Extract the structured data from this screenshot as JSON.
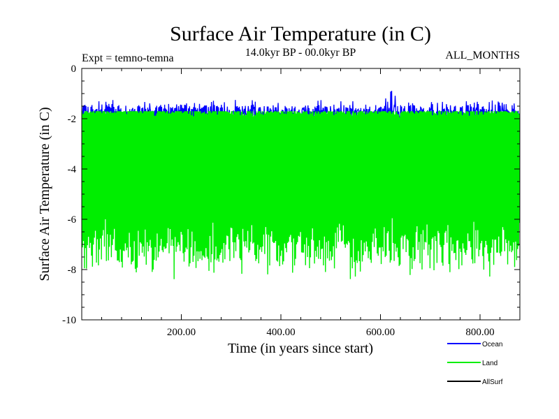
{
  "chart_data": {
    "type": "line",
    "title": "Surface Air Temperature (in C)",
    "subtitle": "14.0kyr BP - 00.0kyr BP",
    "left_annotation": "Expt = temno-temna",
    "right_annotation": "ALL_MONTHS",
    "xlabel": "Time (in years since start)",
    "ylabel": "Surface Air Temperature (in C)",
    "xlim": [
      0,
      880
    ],
    "ylim": [
      -10,
      0
    ],
    "x_ticks": [
      200,
      400,
      600,
      800
    ],
    "x_tick_labels": [
      "200.00",
      "400.00",
      "600.00",
      "800.00"
    ],
    "y_ticks": [
      0,
      -2,
      -4,
      -6,
      -8,
      -10
    ],
    "y_tick_labels": [
      "0",
      "-2",
      "-4",
      "-6",
      "-8",
      "-10"
    ],
    "legend_position": "bottom-right",
    "series": [
      {
        "name": "Ocean",
        "color": "#0000ff",
        "approx_mean": -1.8,
        "approx_min": -2.6,
        "approx_max": -0.8
      },
      {
        "name": "Land",
        "color": "#00ee00",
        "approx_mean": -5.2,
        "approx_min": -8.5,
        "approx_max": -1.7
      },
      {
        "name": "AllSurf",
        "color": "#000000",
        "approx_mean": -2.3,
        "approx_min": -3.3,
        "approx_max": -1.7
      }
    ]
  }
}
